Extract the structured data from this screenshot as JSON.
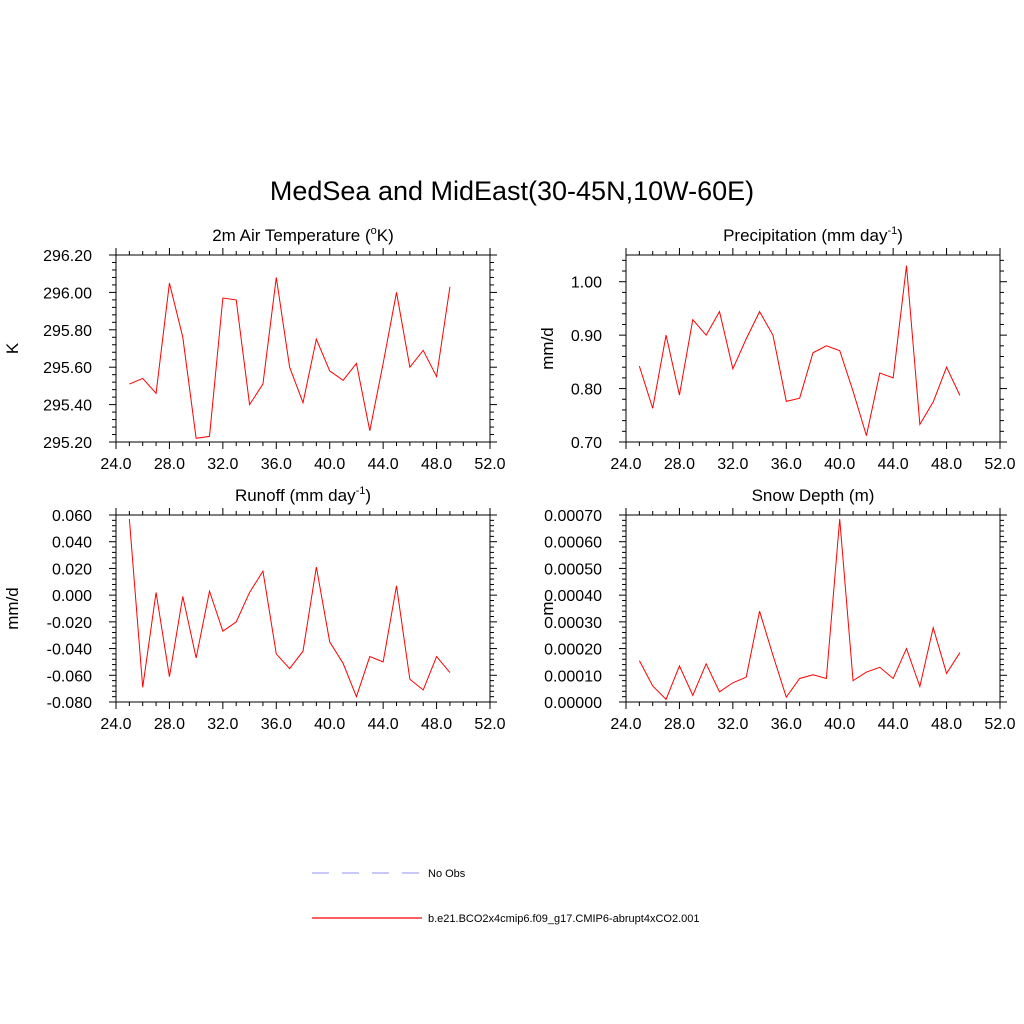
{
  "page_title": "MedSea and MidEast(30-45N,10W-60E)",
  "colors": {
    "model": "#ff0000",
    "obs": "#a8a8ff",
    "axis": "#000000"
  },
  "legend": {
    "obs_label": "No Obs",
    "model_label": "b.e21.BCO2x4cmip6.f09_g17.CMIP6-abrupt4xCO2.001"
  },
  "chart_data": [
    {
      "type": "line",
      "title_main": "2m Air Temperature (",
      "title_sup": "o",
      "title_tail": "K)",
      "ylabel": "K",
      "xlim": [
        24,
        52
      ],
      "ylim": [
        295.2,
        296.2
      ],
      "xticks": [
        "24.0",
        "28.0",
        "32.0",
        "36.0",
        "40.0",
        "44.0",
        "48.0",
        "52.0"
      ],
      "yticks": [
        "295.20",
        "295.40",
        "295.60",
        "295.80",
        "296.00",
        "296.20"
      ],
      "x": [
        25,
        26,
        27,
        28,
        29,
        30,
        31,
        32,
        33,
        34,
        35,
        36,
        37,
        38,
        39,
        40,
        41,
        42,
        43,
        44,
        45,
        46,
        47,
        48,
        49
      ],
      "series": [
        {
          "name": "b.e21.BCO2x4cmip6.f09_g17.CMIP6-abrupt4xCO2.001",
          "values": [
            295.51,
            295.54,
            295.46,
            296.05,
            295.76,
            295.22,
            295.23,
            295.97,
            295.96,
            295.4,
            295.51,
            296.08,
            295.6,
            295.41,
            295.75,
            295.58,
            295.53,
            295.62,
            295.26,
            295.62,
            296.0,
            295.6,
            295.69,
            295.55,
            296.03
          ]
        }
      ]
    },
    {
      "type": "line",
      "title_main": "Precipitation (mm day",
      "title_sup": "-1",
      "title_tail": ")",
      "ylabel": "mm/d",
      "xlim": [
        24,
        52
      ],
      "ylim": [
        0.7,
        1.05
      ],
      "xticks": [
        "24.0",
        "28.0",
        "32.0",
        "36.0",
        "40.0",
        "44.0",
        "48.0",
        "52.0"
      ],
      "yticks": [
        "0.70",
        "0.80",
        "0.90",
        "1.00"
      ],
      "x": [
        25,
        26,
        27,
        28,
        29,
        30,
        31,
        32,
        33,
        34,
        35,
        36,
        37,
        38,
        39,
        40,
        41,
        42,
        43,
        44,
        45,
        46,
        47,
        48,
        49
      ],
      "series": [
        {
          "name": "b.e21.BCO2x4cmip6.f09_g17.CMIP6-abrupt4xCO2.001",
          "values": [
            0.842,
            0.763,
            0.9,
            0.788,
            0.929,
            0.9,
            0.944,
            0.837,
            0.893,
            0.944,
            0.9,
            0.776,
            0.782,
            0.867,
            0.88,
            0.871,
            0.795,
            0.712,
            0.829,
            0.82,
            1.03,
            0.733,
            0.775,
            0.84,
            0.787
          ]
        }
      ]
    },
    {
      "type": "line",
      "title_main": "Runoff (mm day",
      "title_sup": "-1",
      "title_tail": ")",
      "ylabel": "mm/d",
      "xlim": [
        24,
        52
      ],
      "ylim": [
        -0.08,
        0.06
      ],
      "xticks": [
        "24.0",
        "28.0",
        "32.0",
        "36.0",
        "40.0",
        "44.0",
        "48.0",
        "52.0"
      ],
      "yticks": [
        "-0.080",
        "-0.060",
        "-0.040",
        "-0.020",
        "0.000",
        "0.020",
        "0.040",
        "0.060"
      ],
      "x": [
        25,
        26,
        27,
        28,
        29,
        30,
        31,
        32,
        33,
        34,
        35,
        36,
        37,
        38,
        39,
        40,
        41,
        42,
        43,
        44,
        45,
        46,
        47,
        48,
        49
      ],
      "series": [
        {
          "name": "b.e21.BCO2x4cmip6.f09_g17.CMIP6-abrupt4xCO2.001",
          "values": [
            0.057,
            -0.069,
            0.002,
            -0.061,
            -0.001,
            -0.047,
            0.003,
            -0.027,
            -0.02,
            0.002,
            0.018,
            -0.044,
            -0.055,
            -0.042,
            0.021,
            -0.035,
            -0.051,
            -0.076,
            -0.046,
            -0.05,
            0.007,
            -0.063,
            -0.071,
            -0.046,
            -0.058
          ]
        }
      ]
    },
    {
      "type": "line",
      "title_main": "Snow Depth (m)",
      "title_sup": "",
      "title_tail": "",
      "ylabel": "m",
      "xlim": [
        24,
        52
      ],
      "ylim": [
        0,
        0.0007
      ],
      "xticks": [
        "24.0",
        "28.0",
        "32.0",
        "36.0",
        "40.0",
        "44.0",
        "48.0",
        "52.0"
      ],
      "yticks": [
        "0.00000",
        "0.00010",
        "0.00020",
        "0.00030",
        "0.00040",
        "0.00050",
        "0.00060",
        "0.00070"
      ],
      "x": [
        25,
        26,
        27,
        28,
        29,
        30,
        31,
        32,
        33,
        34,
        35,
        36,
        37,
        38,
        39,
        40,
        41,
        42,
        43,
        44,
        45,
        46,
        47,
        48,
        49
      ],
      "series": [
        {
          "name": "b.e21.BCO2x4cmip6.f09_g17.CMIP6-abrupt4xCO2.001",
          "values": [
            0.000155,
            6e-05,
            1e-05,
            0.000135,
            2.5e-05,
            0.000143,
            3.8e-05,
            7.2e-05,
            9.3e-05,
            0.00034,
            0.000175,
            1.8e-05,
            8.8e-05,
            0.000102,
            8.8e-05,
            0.000685,
            8e-05,
            0.000112,
            0.00013,
            8.8e-05,
            0.0002,
            5.8e-05,
            0.000278,
            0.000107,
            0.000185
          ]
        }
      ]
    }
  ]
}
